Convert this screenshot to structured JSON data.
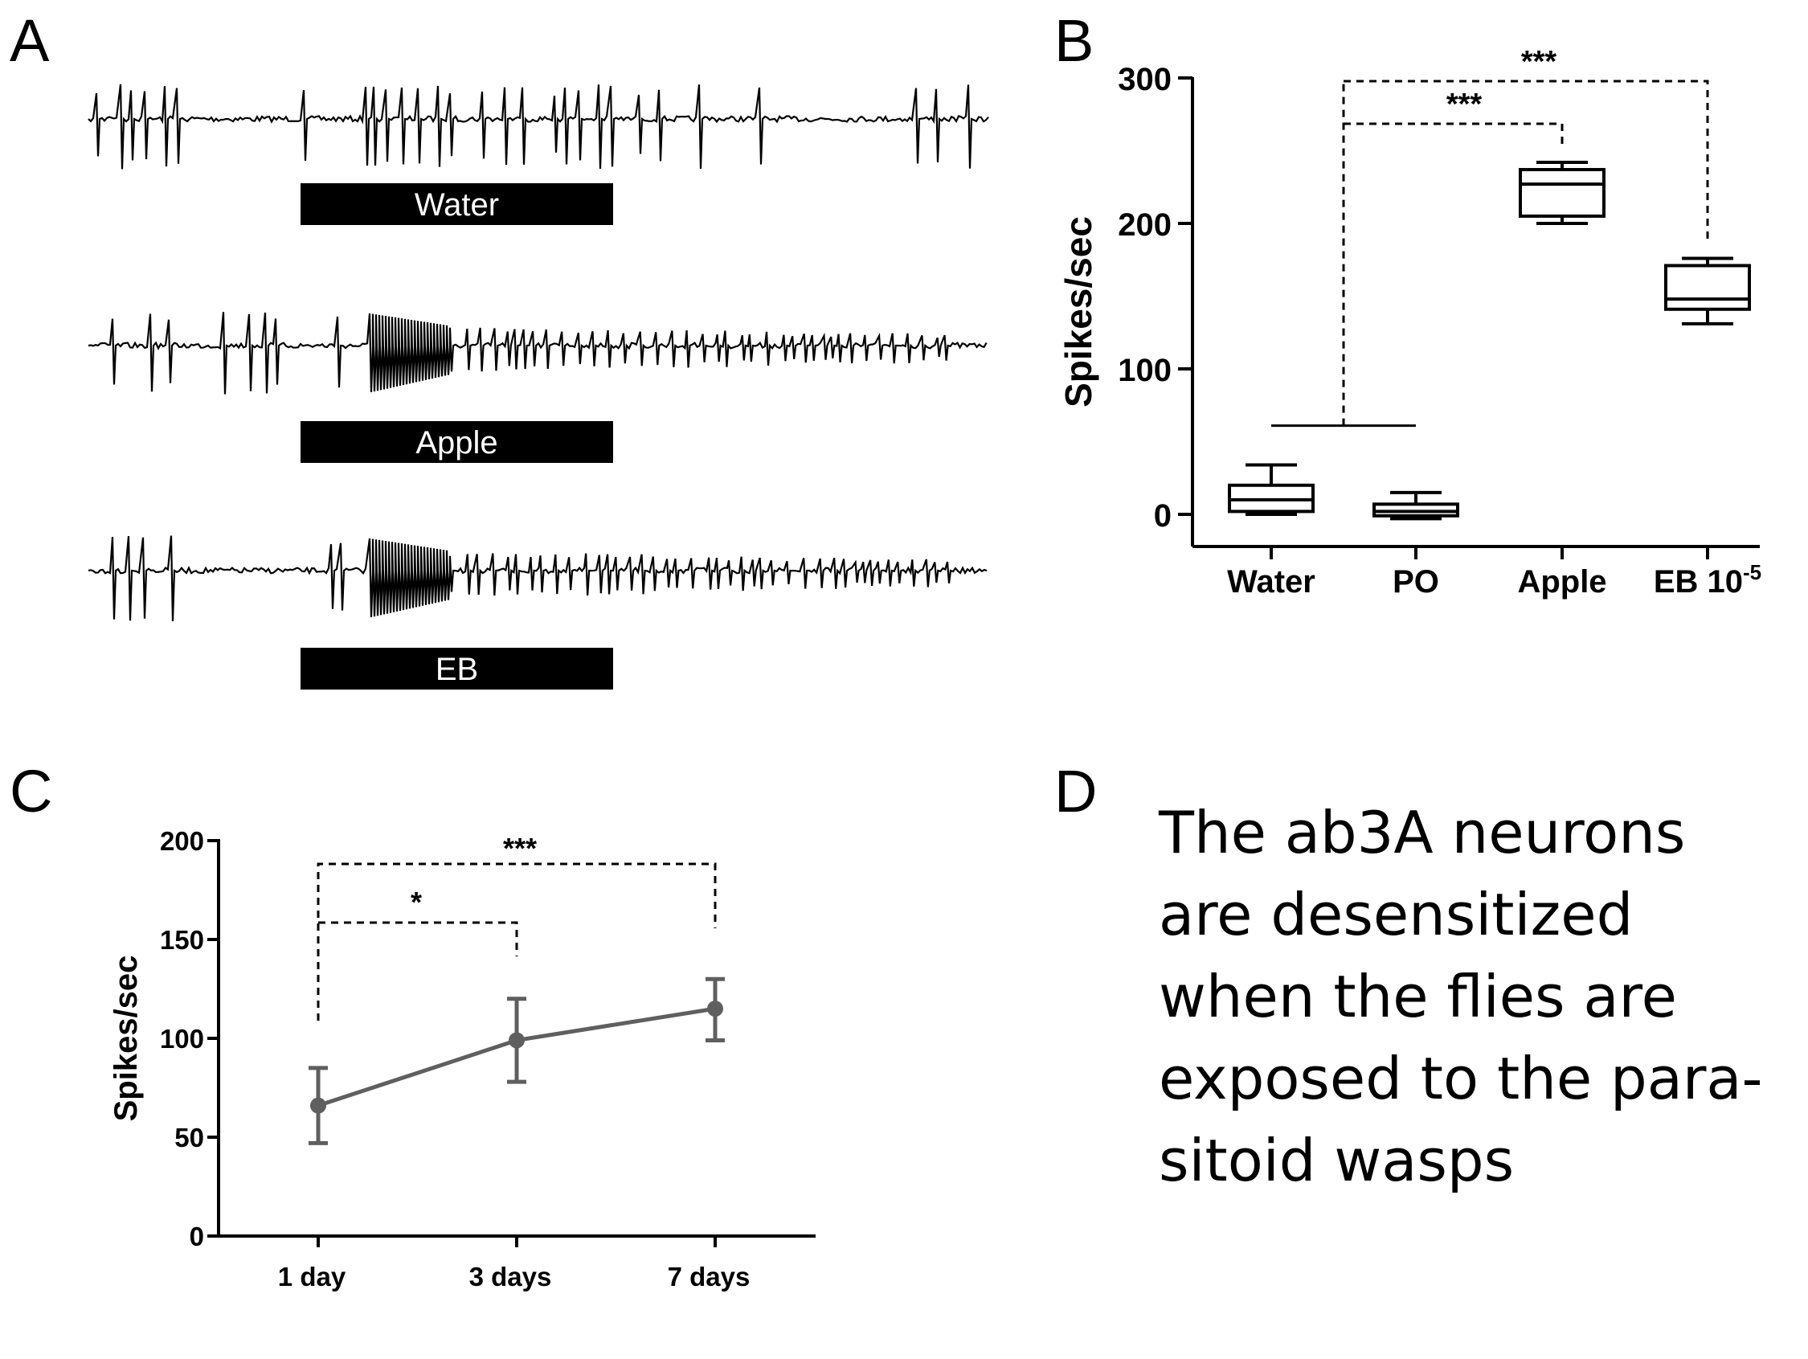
{
  "panels": {
    "a": {
      "letter": "A"
    },
    "b": {
      "letter": "B"
    },
    "c": {
      "letter": "C"
    },
    "d": {
      "letter": "D",
      "lines": [
        "The ab3A neurons",
        "are desensitized",
        "when the flies are",
        "exposed to the para-",
        "sitoid wasps"
      ]
    }
  },
  "chart_data": [
    {
      "panel": "A",
      "type": "other",
      "traces": [
        {
          "stimulus": "Water",
          "response": "no change in firing"
        },
        {
          "stimulus": "Apple",
          "response": "strong burst at stimulus onset"
        },
        {
          "stimulus": "EB",
          "response": "strong burst at stimulus onset"
        }
      ]
    },
    {
      "panel": "B",
      "type": "box",
      "ylabel": "Spikes/sec",
      "ylim": [
        0,
        300
      ],
      "yticks": [
        0,
        100,
        200,
        300
      ],
      "categories": [
        "Water",
        "PO",
        "Apple",
        "EB 10"
      ],
      "category_superscript": {
        "EB 10": "-5"
      },
      "boxes": [
        {
          "category": "Water",
          "min": 0,
          "q1": 2,
          "median": 10,
          "q3": 20,
          "max": 34
        },
        {
          "category": "PO",
          "min": -3,
          "q1": -1,
          "median": 2,
          "q3": 7,
          "max": 15
        },
        {
          "category": "Apple",
          "min": 200,
          "q1": 205,
          "median": 227,
          "q3": 237,
          "max": 242
        },
        {
          "category": "EB 10",
          "min": 131,
          "q1": 141,
          "median": 148,
          "q3": 171,
          "max": 176
        }
      ],
      "group_bar": {
        "categories": [
          "Water",
          "PO"
        ],
        "y": 61
      },
      "significance": [
        {
          "from": "Water+PO",
          "to": "Apple",
          "label": "***"
        },
        {
          "from": "Water+PO",
          "to": "EB 10",
          "label": "***"
        }
      ]
    },
    {
      "panel": "C",
      "type": "line",
      "ylabel": "Spikes/sec",
      "ylim": [
        0,
        200
      ],
      "yticks": [
        0,
        50,
        100,
        150,
        200
      ],
      "categories": [
        "1 day",
        "3 days",
        "7 days"
      ],
      "series": [
        {
          "values": [
            66,
            99,
            115
          ],
          "error_low": [
            47,
            78,
            99
          ],
          "error_high": [
            85,
            120,
            130
          ],
          "color": "#5f5f5f"
        }
      ],
      "significance": [
        {
          "from": "1 day",
          "to": "3 days",
          "label": "*"
        },
        {
          "from": "1 day",
          "to": "7 days",
          "label": "***"
        }
      ]
    }
  ]
}
